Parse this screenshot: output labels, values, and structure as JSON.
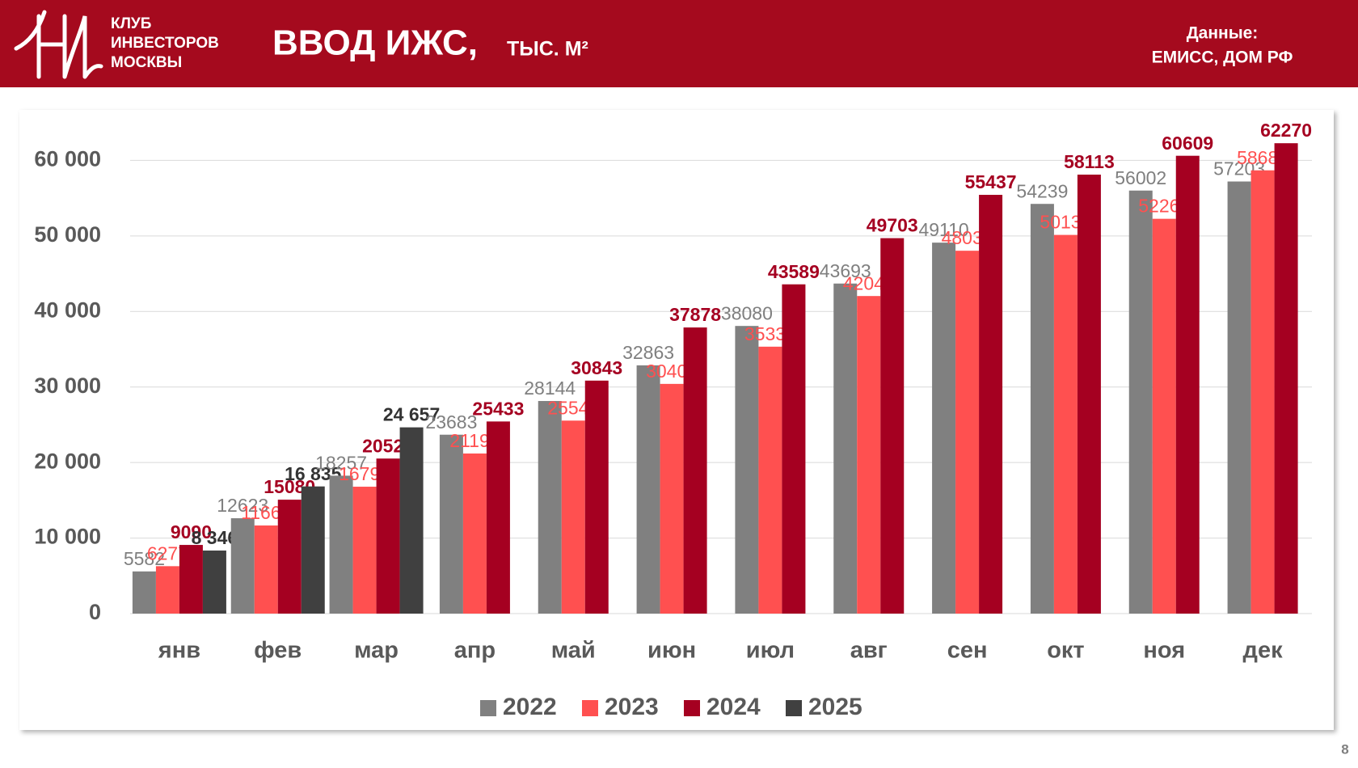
{
  "header": {
    "club": [
      "КЛУБ",
      "ИНВЕСТОРОВ",
      "МОСКВЫ"
    ],
    "source_label": "Данные:",
    "source": "ЕМИСС, ДОМ РФ"
  },
  "page_number": 8,
  "chart_data": {
    "type": "bar",
    "title": "ВВОД ИЖС,",
    "subtitle": "ТЫС. М²",
    "categories": [
      "янв",
      "фев",
      "мар",
      "апр",
      "май",
      "июн",
      "июл",
      "авг",
      "сен",
      "окт",
      "ноя",
      "дек"
    ],
    "series": [
      {
        "name": "2022",
        "color": "#808080",
        "values": [
          5582,
          12623,
          18257,
          23683,
          28144,
          32863,
          38080,
          43693,
          49110,
          54239,
          56002,
          57203
        ]
      },
      {
        "name": "2023",
        "color": "#ff5050",
        "values": [
          6277,
          11664,
          16799,
          21194,
          25548,
          30409,
          35336,
          42041,
          48036,
          50131,
          52266,
          58681
        ]
      },
      {
        "name": "2024",
        "color": "#a50021",
        "values": [
          9090,
          15080,
          20525,
          25433,
          30843,
          37878,
          43589,
          49703,
          55437,
          58113,
          60609,
          62270
        ]
      },
      {
        "name": "2025",
        "color": "#404040",
        "values": [
          8346,
          16835,
          24657,
          null,
          null,
          null,
          null,
          null,
          null,
          null,
          null,
          null
        ],
        "value_labels": [
          "8 346",
          "16 835",
          "24 657",
          null,
          null,
          null,
          null,
          null,
          null,
          null,
          null,
          null
        ]
      }
    ],
    "ylim": [
      0,
      64000
    ],
    "yticks": [
      0,
      {
        "value": 10000,
        "label": "10 000"
      },
      {
        "value": 20000,
        "label": "20 000"
      },
      {
        "value": 30000,
        "label": "30 000"
      },
      {
        "value": 40000,
        "label": "40 000"
      },
      {
        "value": 50000,
        "label": "50 000"
      },
      {
        "value": 60000,
        "label": "60 000"
      }
    ],
    "grid": true,
    "legend": "bottom"
  }
}
